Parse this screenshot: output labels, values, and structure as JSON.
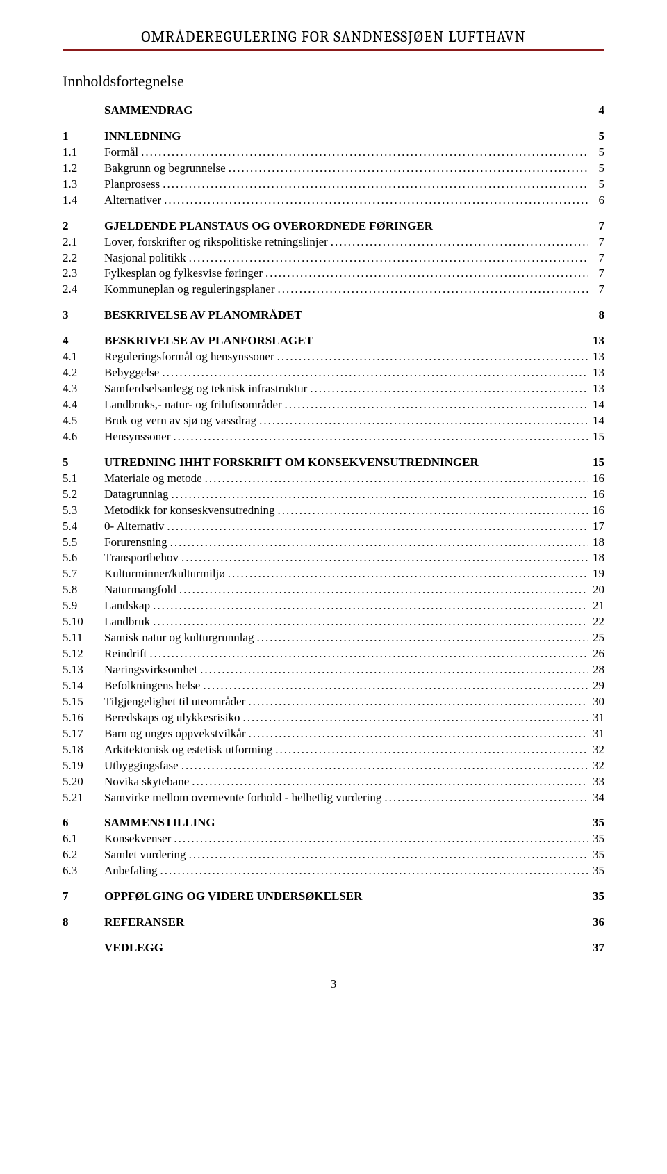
{
  "header": {
    "title": "OMRÅDEREGULERING FOR SANDNESSJØEN LUFTHAVN"
  },
  "toc": {
    "title": "Innholdsfortegnelse",
    "entries": [
      {
        "level": 0,
        "num": "",
        "label": "SAMMENDRAG",
        "page": "4",
        "dots": false
      },
      {
        "level": 0,
        "num": "1",
        "label": "INNLEDNING",
        "page": "5",
        "dots": false
      },
      {
        "level": 1,
        "num": "1.1",
        "label": "Formål",
        "page": "5",
        "dots": true
      },
      {
        "level": 1,
        "num": "1.2",
        "label": "Bakgrunn og begrunnelse",
        "page": "5",
        "dots": true
      },
      {
        "level": 1,
        "num": "1.3",
        "label": "Planprosess",
        "page": "5",
        "dots": true
      },
      {
        "level": 1,
        "num": "1.4",
        "label": "Alternativer",
        "page": "6",
        "dots": true
      },
      {
        "level": 0,
        "num": "2",
        "label": "GJELDENDE PLANSTAUS OG OVERORDNEDE  FØRINGER",
        "page": "7",
        "dots": false
      },
      {
        "level": 1,
        "num": "2.1",
        "label": "Lover, forskrifter og rikspolitiske retningslinjer",
        "page": "7",
        "dots": true
      },
      {
        "level": 1,
        "num": "2.2",
        "label": "Nasjonal politikk",
        "page": "7",
        "dots": true
      },
      {
        "level": 1,
        "num": "2.3",
        "label": "Fylkesplan og fylkesvise føringer",
        "page": "7",
        "dots": true
      },
      {
        "level": 1,
        "num": "2.4",
        "label": "Kommuneplan og reguleringsplaner",
        "page": "7",
        "dots": true
      },
      {
        "level": 0,
        "num": "3",
        "label": "BESKRIVELSE AV PLANOMRÅDET",
        "page": "8",
        "dots": false
      },
      {
        "level": 0,
        "num": "4",
        "label": "BESKRIVELSE AV PLANFORSLAGET",
        "page": "13",
        "dots": false
      },
      {
        "level": 1,
        "num": "4.1",
        "label": "Reguleringsformål og hensynssoner",
        "page": "13",
        "dots": true
      },
      {
        "level": 1,
        "num": "4.2",
        "label": "Bebyggelse",
        "page": "13",
        "dots": true
      },
      {
        "level": 1,
        "num": "4.3",
        "label": "Samferdselsanlegg og teknisk infrastruktur",
        "page": "13",
        "dots": true
      },
      {
        "level": 1,
        "num": "4.4",
        "label": "Landbruks,- natur- og friluftsområder",
        "page": "14",
        "dots": true
      },
      {
        "level": 1,
        "num": "4.5",
        "label": "Bruk og vern av sjø og vassdrag",
        "page": "14",
        "dots": true
      },
      {
        "level": 1,
        "num": "4.6",
        "label": "Hensynssoner",
        "page": "15",
        "dots": true
      },
      {
        "level": 0,
        "num": "5",
        "label": "UTREDNING IHHT FORSKRIFT OM KONSEKVENSUTREDNINGER",
        "page": "15",
        "dots": false
      },
      {
        "level": 1,
        "num": "5.1",
        "label": "Materiale og metode",
        "page": "16",
        "dots": true
      },
      {
        "level": 1,
        "num": "5.2",
        "label": "Datagrunnlag",
        "page": "16",
        "dots": true
      },
      {
        "level": 1,
        "num": "5.3",
        "label": "Metodikk for konseskvensutredning",
        "page": "16",
        "dots": true
      },
      {
        "level": 1,
        "num": "5.4",
        "label": "0- Alternativ",
        "page": "17",
        "dots": true
      },
      {
        "level": 1,
        "num": "5.5",
        "label": "Forurensning",
        "page": "18",
        "dots": true
      },
      {
        "level": 1,
        "num": "5.6",
        "label": "Transportbehov",
        "page": "18",
        "dots": true
      },
      {
        "level": 1,
        "num": "5.7",
        "label": "Kulturminner/kulturmiljø",
        "page": "19",
        "dots": true
      },
      {
        "level": 1,
        "num": "5.8",
        "label": "Naturmangfold",
        "page": "20",
        "dots": true
      },
      {
        "level": 1,
        "num": "5.9",
        "label": "Landskap",
        "page": "21",
        "dots": true
      },
      {
        "level": 1,
        "num": "5.10",
        "label": "Landbruk",
        "page": "22",
        "dots": true
      },
      {
        "level": 1,
        "num": "5.11",
        "label": "Samisk natur og kulturgrunnlag",
        "page": "25",
        "dots": true
      },
      {
        "level": 1,
        "num": "5.12",
        "label": "Reindrift",
        "page": "26",
        "dots": true
      },
      {
        "level": 1,
        "num": "5.13",
        "label": "Næringsvirksomhet",
        "page": "28",
        "dots": true
      },
      {
        "level": 1,
        "num": "5.14",
        "label": "Befolkningens helse",
        "page": "29",
        "dots": true
      },
      {
        "level": 1,
        "num": "5.15",
        "label": "Tilgjengelighet til uteområder",
        "page": "30",
        "dots": true
      },
      {
        "level": 1,
        "num": "5.16",
        "label": "Beredskaps og ulykkesrisiko",
        "page": "31",
        "dots": true
      },
      {
        "level": 1,
        "num": "5.17",
        "label": "Barn og unges oppvekstvilkår",
        "page": "31",
        "dots": true
      },
      {
        "level": 1,
        "num": "5.18",
        "label": "Arkitektonisk og estetisk utforming",
        "page": "32",
        "dots": true
      },
      {
        "level": 1,
        "num": "5.19",
        "label": "Utbyggingsfase",
        "page": "32",
        "dots": true
      },
      {
        "level": 1,
        "num": "5.20",
        "label": "Novika skytebane",
        "page": "33",
        "dots": true
      },
      {
        "level": 1,
        "num": "5.21",
        "label": "Samvirke mellom overnevnte forhold - helhetlig vurdering",
        "page": "34",
        "dots": true
      },
      {
        "level": 0,
        "num": "6",
        "label": "SAMMENSTILLING",
        "page": "35",
        "dots": false
      },
      {
        "level": 1,
        "num": "6.1",
        "label": "Konsekvenser",
        "page": "35",
        "dots": true
      },
      {
        "level": 1,
        "num": "6.2",
        "label": "Samlet vurdering",
        "page": "35",
        "dots": true
      },
      {
        "level": 1,
        "num": "6.3",
        "label": "Anbefaling",
        "page": "35",
        "dots": true
      },
      {
        "level": 0,
        "num": "7",
        "label": "OPPFØLGING OG VIDERE UNDERSØKELSER",
        "page": "35",
        "dots": false
      },
      {
        "level": 0,
        "num": "8",
        "label": "REFERANSER",
        "page": "36",
        "dots": false
      },
      {
        "level": 0,
        "num": "",
        "label": "VEDLEGG",
        "page": "37",
        "dots": false
      }
    ]
  },
  "pageNumber": "3",
  "style": {
    "ruleColor": "#8b1a1a",
    "textColor": "#000000",
    "background": "#ffffff"
  }
}
